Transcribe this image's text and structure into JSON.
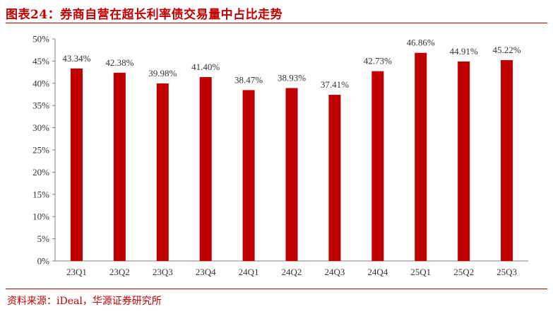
{
  "title": "图表24：券商自营在超长利率债交易量中占比走势",
  "source": "资料来源：iDeal，华源证券研究所",
  "colors": {
    "bar": "#c00000",
    "accent": "#c00000",
    "axis": "#808080",
    "text": "#333333"
  },
  "chart_data": {
    "type": "bar",
    "categories": [
      "23Q1",
      "23Q2",
      "23Q3",
      "23Q4",
      "24Q1",
      "24Q2",
      "24Q3",
      "24Q4",
      "25Q1",
      "25Q2",
      "25Q3"
    ],
    "values": [
      43.34,
      42.38,
      39.98,
      41.4,
      38.47,
      38.93,
      37.41,
      42.73,
      46.86,
      44.91,
      45.22
    ],
    "value_labels": [
      "43.34%",
      "42.38%",
      "39.98%",
      "41.40%",
      "38.47%",
      "38.93%",
      "37.41%",
      "42.73%",
      "46.86%",
      "44.91%",
      "45.22%"
    ],
    "yticks": [
      "0%",
      "5%",
      "10%",
      "15%",
      "20%",
      "25%",
      "30%",
      "35%",
      "40%",
      "45%",
      "50%"
    ],
    "ylim": [
      0,
      50
    ],
    "title": "",
    "xlabel": "",
    "ylabel": "",
    "grid": false,
    "legend": "none"
  }
}
